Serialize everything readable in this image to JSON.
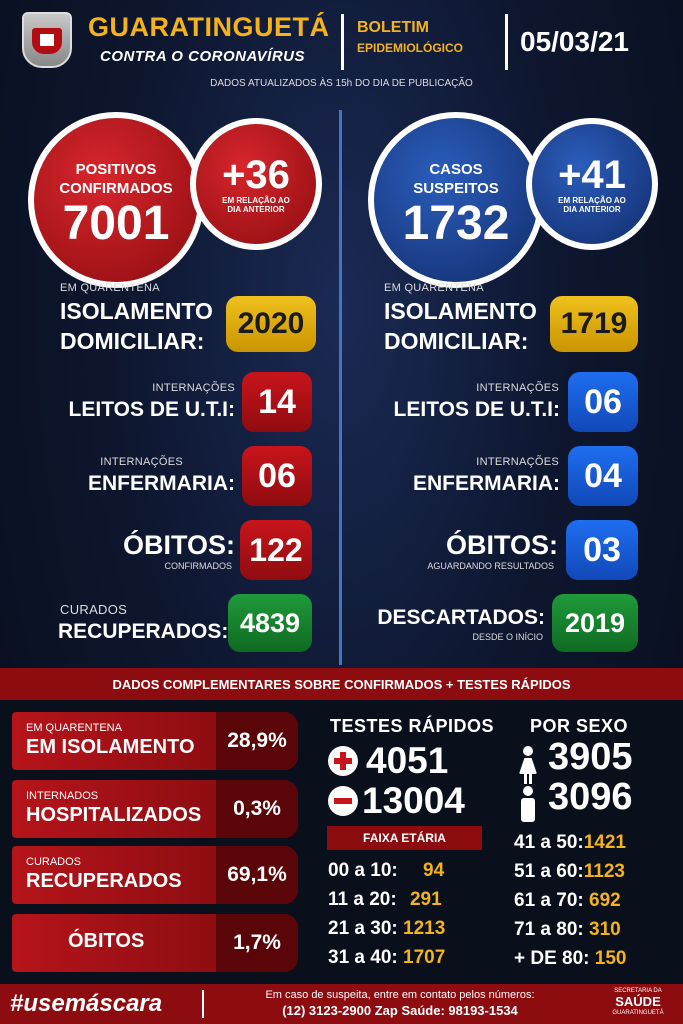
{
  "header": {
    "city": "GUARATINGUETÁ",
    "city_sub": "CONTRA O CORONAVÍRUS",
    "boletim_1": "BOLETIM",
    "boletim_2": "EPIDEMIOLÓGICO",
    "date": "05/03/21",
    "updated": "DADOS ATUALIZADOS ÀS 15h DO DIA DE PUBLICAÇÃO"
  },
  "confirmed": {
    "label_1": "POSITIVOS",
    "label_2": "CONFIRMADOS",
    "total": "7001",
    "delta": "+36",
    "delta_sub": "EM RELAÇÃO AO DIA ANTERIOR"
  },
  "suspected": {
    "label_1": "CASOS",
    "label_2": "SUSPEITOS",
    "total": "1732",
    "delta": "+41",
    "delta_sub": "EM RELAÇÃO AO DIA ANTERIOR"
  },
  "left_stats": {
    "quarantine_small": "EM QUARENTENA",
    "quarantine_1": "ISOLAMENTO",
    "quarantine_2": "DOMICILIAR:",
    "quarantine_value": "2020",
    "uti_small": "INTERNAÇÕES",
    "uti_label": "LEITOS DE U.T.I:",
    "uti_value": "14",
    "ward_small": "INTERNAÇÕES",
    "ward_label": "ENFERMARIA:",
    "ward_value": "06",
    "deaths_label": "ÓBITOS:",
    "deaths_small": "CONFIRMADOS",
    "deaths_value": "122",
    "cured_small": "CURADOS",
    "cured_label": "RECUPERADOS:",
    "cured_value": "4839"
  },
  "right_stats": {
    "quarantine_small": "EM QUARENTENA",
    "quarantine_1": "ISOLAMENTO",
    "quarantine_2": "DOMICILIAR:",
    "quarantine_value": "1719",
    "uti_small": "INTERNAÇÕES",
    "uti_label": "LEITOS DE U.T.I:",
    "uti_value": "06",
    "ward_small": "INTERNAÇÕES",
    "ward_label": "ENFERMARIA:",
    "ward_value": "04",
    "deaths_label": "ÓBITOS:",
    "deaths_small": "AGUARDANDO RESULTADOS",
    "deaths_value": "03",
    "discarded_label": "DESCARTADOS:",
    "discarded_small": "DESDE O INÍCIO",
    "discarded_value": "2019"
  },
  "complementary": {
    "band_title": "DADOS COMPLEMENTARES SOBRE CONFIRMADOS + TESTES RÁPIDOS",
    "pills": [
      {
        "small": "EM QUARENTENA",
        "big": "EM ISOLAMENTO",
        "pct": "28,9%"
      },
      {
        "small": "INTERNADOS",
        "big": "HOSPITALIZADOS",
        "pct": "0,3%"
      },
      {
        "small": "CURADOS",
        "big": "RECUPERADOS",
        "pct": "69,1%"
      },
      {
        "small": "",
        "big": "ÓBITOS",
        "pct": "1,7%"
      }
    ],
    "rapid_title": "TESTES RÁPIDOS",
    "rapid_positive": "4051",
    "rapid_negative": "13004",
    "faixa_title": "FAIXA ETÁRIA",
    "ages_left": [
      {
        "range": "00 a 10:",
        "value": "94"
      },
      {
        "range": "11 a 20:",
        "value": "291"
      },
      {
        "range": "21 a 30:",
        "value": "1213"
      },
      {
        "range": "31 a 40:",
        "value": "1707"
      }
    ],
    "sex_title": "POR SEXO",
    "female": "3905",
    "male": "3096",
    "ages_right": [
      {
        "range": "41 a 50:",
        "value": "1421"
      },
      {
        "range": "51 a 60:",
        "value": "1123"
      },
      {
        "range": "61 a 70:",
        "value": "692"
      },
      {
        "range": "71 a 80:",
        "value": "310"
      },
      {
        "range": "+ DE 80:",
        "value": "150"
      }
    ]
  },
  "footer": {
    "hashtag": "#usemáscara",
    "contact_1": "Em caso de suspeita, entre em contato pelos números:",
    "contact_2": "(12) 3123-2900 Zap Saúde: 98193-1534",
    "secretaria_1": "SECRETARIA DA",
    "secretaria_2": "SAÚDE",
    "secretaria_3": "GUARATINGUETÁ"
  },
  "colors": {
    "accent_yellow": "#f4b31b",
    "red": "#c8141b",
    "blue": "#1e6ef0",
    "green": "#1f9a3a",
    "background": "#0b1424"
  }
}
